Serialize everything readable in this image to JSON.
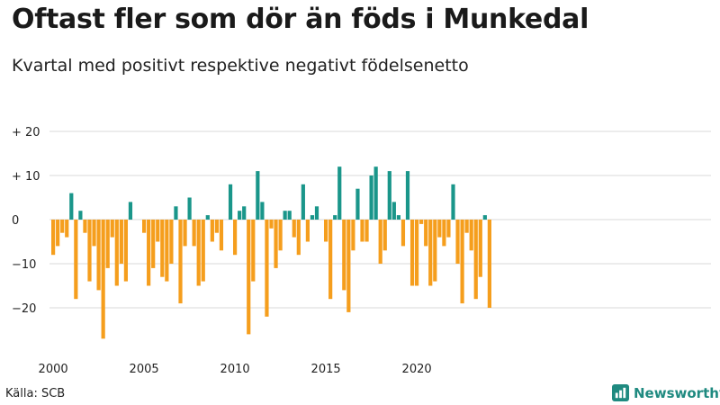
{
  "title": "Oftast fler som dör än föds i Munkedal",
  "subtitle": "Kvartal med positivt respektive negativt födelsenetto",
  "source": "Källa: SCB",
  "brand": {
    "name": "Newsworthy",
    "icon": "newsworthy-logo-icon"
  },
  "colors": {
    "positive": "#1a968a",
    "negative": "#f59e1d",
    "grid": "#d9d9d9"
  },
  "chart_data": {
    "type": "bar",
    "title": "Oftast fler som dör än föds i Munkedal",
    "subtitle": "Kvartal med positivt respektive negativt födelsenetto",
    "xlabel": "",
    "ylabel": "",
    "ylim": [
      -28,
      22
    ],
    "yticks": [
      20,
      10,
      0,
      -10,
      -20
    ],
    "ytick_labels": [
      "+ 20",
      "+ 10",
      "0",
      "−10",
      "−20"
    ],
    "xticks": [
      "2000",
      "2005",
      "2010",
      "2015",
      "2020"
    ],
    "start_year": 2000,
    "quarters_per_year": 4,
    "values": [
      -8,
      -6,
      -3,
      -4,
      6,
      -18,
      2,
      -3,
      -14,
      -6,
      -16,
      -27,
      -11,
      -4,
      -15,
      -10,
      -14,
      4,
      0,
      0,
      -3,
      -15,
      -11,
      -5,
      -13,
      -14,
      -10,
      3,
      -19,
      -6,
      5,
      -6,
      -15,
      -14,
      1,
      -5,
      -3,
      -7,
      0,
      8,
      -8,
      2,
      3,
      -26,
      -14,
      11,
      4,
      -22,
      -2,
      -11,
      -7,
      2,
      2,
      -4,
      -8,
      8,
      -5,
      1,
      3,
      0,
      -5,
      -18,
      1,
      12,
      -16,
      -21,
      -7,
      7,
      -5,
      -5,
      10,
      12,
      -10,
      -7,
      11,
      4,
      1,
      -6,
      11,
      -15,
      -15,
      -1,
      -6,
      -15,
      -14,
      -4,
      -6,
      -4,
      8,
      -10,
      -19,
      -3,
      -7,
      -18,
      -13,
      1,
      -20
    ]
  }
}
